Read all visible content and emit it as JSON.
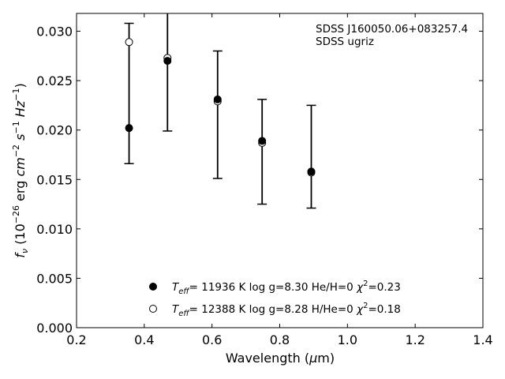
{
  "chart_data": {
    "type": "scatter",
    "title": "",
    "xlabel": "Wavelength (μm)",
    "ylabel": "f_ν (10^-26 erg cm^-2 s^-1 Hz^-1)",
    "xlim": [
      0.2,
      1.4
    ],
    "ylim": [
      0.0,
      0.0318
    ],
    "x_ticks": [
      0.2,
      0.4,
      0.6,
      0.8,
      1.0,
      1.2,
      1.4
    ],
    "x_tick_labels": [
      "0.2",
      "0.4",
      "0.6",
      "0.8",
      "1.0",
      "1.2",
      "1.4"
    ],
    "y_ticks": [
      0.0,
      0.005,
      0.01,
      0.015,
      0.02,
      0.025,
      0.03
    ],
    "y_tick_labels": [
      "0.000",
      "0.005",
      "0.010",
      "0.015",
      "0.020",
      "0.025",
      "0.030"
    ],
    "grid": false,
    "legend_position": "bottom-center",
    "annotations": [
      "SDSS J160050.06+083257.4",
      "SDSS ugriz"
    ],
    "observed": {
      "name": "SDSS ugriz",
      "x": [
        0.3551,
        0.4686,
        0.6166,
        0.748,
        0.8932
      ],
      "y": [
        0.0202,
        0.027,
        0.0231,
        0.0189,
        0.0158
      ],
      "err_low": [
        0.0166,
        0.0199,
        0.0151,
        0.0125,
        0.0121
      ],
      "err_high": [
        0.0308,
        0.032,
        0.028,
        0.0231,
        0.0225
      ]
    },
    "series": [
      {
        "name": "T_eff= 11936 K  log g=8.30  He/H=0  χ²=0.23",
        "marker": "filled",
        "x": [
          0.3551,
          0.4686,
          0.6166,
          0.748,
          0.8932
        ],
        "y": [
          0.0202,
          0.027,
          0.0231,
          0.0189,
          0.0158
        ]
      },
      {
        "name": "T_eff= 12388 K  log g=8.28  H/He=0  χ²=0.18",
        "marker": "open",
        "x": [
          0.3551,
          0.4686,
          0.6166,
          0.748,
          0.8932
        ],
        "y": [
          0.0289,
          0.0273,
          0.0229,
          0.0187,
          0.0157
        ]
      }
    ],
    "legend": {
      "entries": [
        {
          "teff_label": "= 11936 K  log g=8.30  He/H=0  ",
          "chi_value": "=0.23"
        },
        {
          "teff_label": "= 12388 K  log g=8.28  H/He=0  ",
          "chi_value": "=0.18"
        }
      ]
    },
    "colors": {
      "marker": "#000000",
      "open_fill": "#ffffff"
    }
  }
}
